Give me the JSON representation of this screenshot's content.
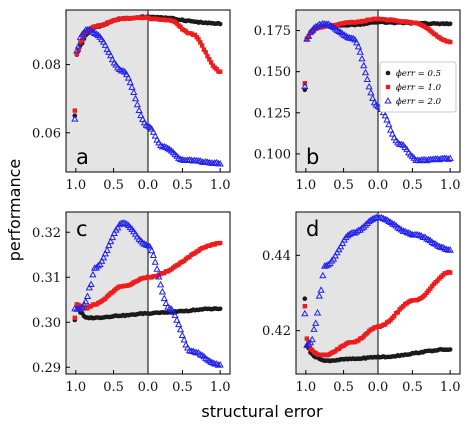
{
  "figure": {
    "xlabel": "structural error",
    "ylabel": "performance"
  },
  "legend": {
    "entries": [
      {
        "label": "ϕerr = 0.5",
        "series_key": "phi05"
      },
      {
        "label": "ϕerr = 1.0",
        "series_key": "phi10"
      },
      {
        "label": "ϕerr = 2.0",
        "series_key": "phi20"
      }
    ],
    "placement": "panel b, center-right"
  },
  "colors": {
    "phi05": "#1a1a1a",
    "phi10": "#ee1c1c",
    "phi20": "#2222ee",
    "shade": "#e4e4e4"
  },
  "chart_data": [
    {
      "type": "scatter",
      "panel": "a",
      "xticks": [
        "1.0",
        "0.5",
        "0.0",
        "0.5",
        "1.0"
      ],
      "ylim": [
        0.0485,
        0.096
      ],
      "yticks": [
        0.06,
        0.08
      ],
      "ytick_labels": [
        "0.06",
        "0.08"
      ],
      "shaded_region": "left half",
      "series": [
        {
          "key": "phi05",
          "left_first": 0.065,
          "left": [
            [
              0.083,
              0.086,
              0.0885,
              0.09,
              0.091
            ],
            [
              0.09,
              0.0935,
              0.094
            ]
          ],
          "right": [
            [
              0,
              0.094
            ],
            [
              1,
              0.092
            ]
          ]
        },
        {
          "key": "phi10",
          "left_first": 0.0665,
          "left": [
            [
              0.083,
              0.087,
              0.0895,
              0.0905,
              0.0912
            ],
            [
              0.0912,
              0.0935,
              0.0938
            ]
          ],
          "right": [
            [
              0,
              0.0935
            ],
            [
              0.3,
              0.093
            ],
            [
              0.6,
              0.089
            ],
            [
              1,
              0.078
            ]
          ]
        },
        {
          "key": "phi20",
          "left_first": 0.064,
          "left": [
            [
              0.084,
              0.0885,
              0.09,
              0.0902,
              0.089
            ],
            [
              0.089,
              0.078,
              0.062
            ]
          ],
          "right": [
            [
              0,
              0.062
            ],
            [
              0.2,
              0.056
            ],
            [
              0.5,
              0.052
            ],
            [
              1,
              0.051
            ]
          ]
        }
      ]
    },
    {
      "type": "scatter",
      "panel": "b",
      "xticks": [
        "1.0",
        "0.5",
        "0.0",
        "0.5",
        "1.0"
      ],
      "ylim": [
        0.089,
        0.1875
      ],
      "yticks": [
        0.1,
        0.125,
        0.15,
        0.175
      ],
      "ytick_labels": [
        "0.100",
        "0.125",
        "0.150",
        "0.175"
      ],
      "shaded_region": "left half",
      "series": [
        {
          "key": "phi05",
          "left_first": 0.139,
          "left": [
            [
              0.17,
              0.174,
              0.176,
              0.177,
              0.1775
            ],
            [
              0.1775,
              0.1785,
              0.18
            ]
          ],
          "right": [
            [
              0,
              0.18
            ],
            [
              1,
              0.179
            ]
          ]
        },
        {
          "key": "phi10",
          "left_first": 0.143,
          "left": [
            [
              0.17,
              0.174,
              0.176,
              0.177,
              0.1775
            ],
            [
              0.1775,
              0.18,
              0.182
            ]
          ],
          "right": [
            [
              0,
              0.182
            ],
            [
              0.5,
              0.18
            ],
            [
              1,
              0.168
            ]
          ]
        },
        {
          "key": "phi20",
          "left_first": 0.141,
          "left": [
            [
              0.17,
              0.1745,
              0.177,
              0.1785,
              0.179
            ],
            [
              0.179,
              0.17,
              0.129
            ]
          ],
          "right": [
            [
              0,
              0.129
            ],
            [
              0.3,
              0.106
            ],
            [
              0.55,
              0.096
            ],
            [
              1,
              0.097
            ]
          ]
        }
      ]
    },
    {
      "type": "scatter",
      "panel": "c",
      "xticks": [
        "1.0",
        "0.5",
        "0.0",
        "0.5",
        "1.0"
      ],
      "ylim": [
        0.2885,
        0.3245
      ],
      "yticks": [
        0.29,
        0.3,
        0.31,
        0.32
      ],
      "ytick_labels": [
        "0.29",
        "0.30",
        "0.31",
        "0.32"
      ],
      "shaded_region": "left half",
      "series": [
        {
          "key": "phi05",
          "left_first": 0.3005,
          "left": [
            [
              0.304,
              0.302,
              0.301,
              0.301,
              0.301
            ],
            [
              0.301,
              0.3015,
              0.302
            ]
          ],
          "right": [
            [
              0,
              0.302
            ],
            [
              1,
              0.303
            ]
          ]
        },
        {
          "key": "phi10",
          "left_first": 0.301,
          "left": [
            [
              0.304,
              0.3035,
              0.303,
              0.3035,
              0.304
            ],
            [
              0.304,
              0.308,
              0.31
            ]
          ],
          "right": [
            [
              0,
              0.31
            ],
            [
              1,
              0.3175
            ]
          ]
        },
        {
          "key": "phi20",
          "left_first": 0.303,
          "left": [
            [
              0.303,
              0.303,
              0.3045,
              0.308,
              0.312
            ],
            [
              0.312,
              0.322,
              0.317
            ]
          ],
          "right": [
            [
              0,
              0.317
            ],
            [
              0.3,
              0.303
            ],
            [
              0.6,
              0.2935
            ],
            [
              1,
              0.2905
            ]
          ]
        }
      ]
    },
    {
      "type": "scatter",
      "panel": "d",
      "xticks": [
        "1.0",
        "0.5",
        "0.0",
        "0.5",
        "1.0"
      ],
      "ylim": [
        0.4085,
        0.4515
      ],
      "yticks": [
        0.42,
        0.44
      ],
      "ytick_labels": [
        "0.42",
        "0.44"
      ],
      "shaded_region": "left half",
      "series": [
        {
          "key": "phi05",
          "left_first": 0.4285,
          "left": [
            [
              0.416,
              0.414,
              0.413,
              0.4125,
              0.412
            ],
            [
              0.412,
              0.4125,
              0.413
            ]
          ],
          "right": [
            [
              0,
              0.413
            ],
            [
              1,
              0.415
            ]
          ]
        },
        {
          "key": "phi10",
          "left_first": 0.4265,
          "left": [
            [
              0.418,
              0.415,
              0.414,
              0.4135,
              0.4135
            ],
            [
              0.4135,
              0.417,
              0.421
            ]
          ],
          "right": [
            [
              0,
              0.421
            ],
            [
              0.5,
              0.428
            ],
            [
              1,
              0.4355
            ]
          ]
        },
        {
          "key": "phi20",
          "left_first": 0.4245,
          "left": [
            [
              0.416,
              0.417,
              0.422,
              0.43,
              0.437
            ],
            [
              0.437,
              0.446,
              0.45
            ]
          ],
          "right": [
            [
              0,
              0.45
            ],
            [
              0.5,
              0.4455
            ],
            [
              1,
              0.4415
            ]
          ]
        }
      ]
    }
  ]
}
